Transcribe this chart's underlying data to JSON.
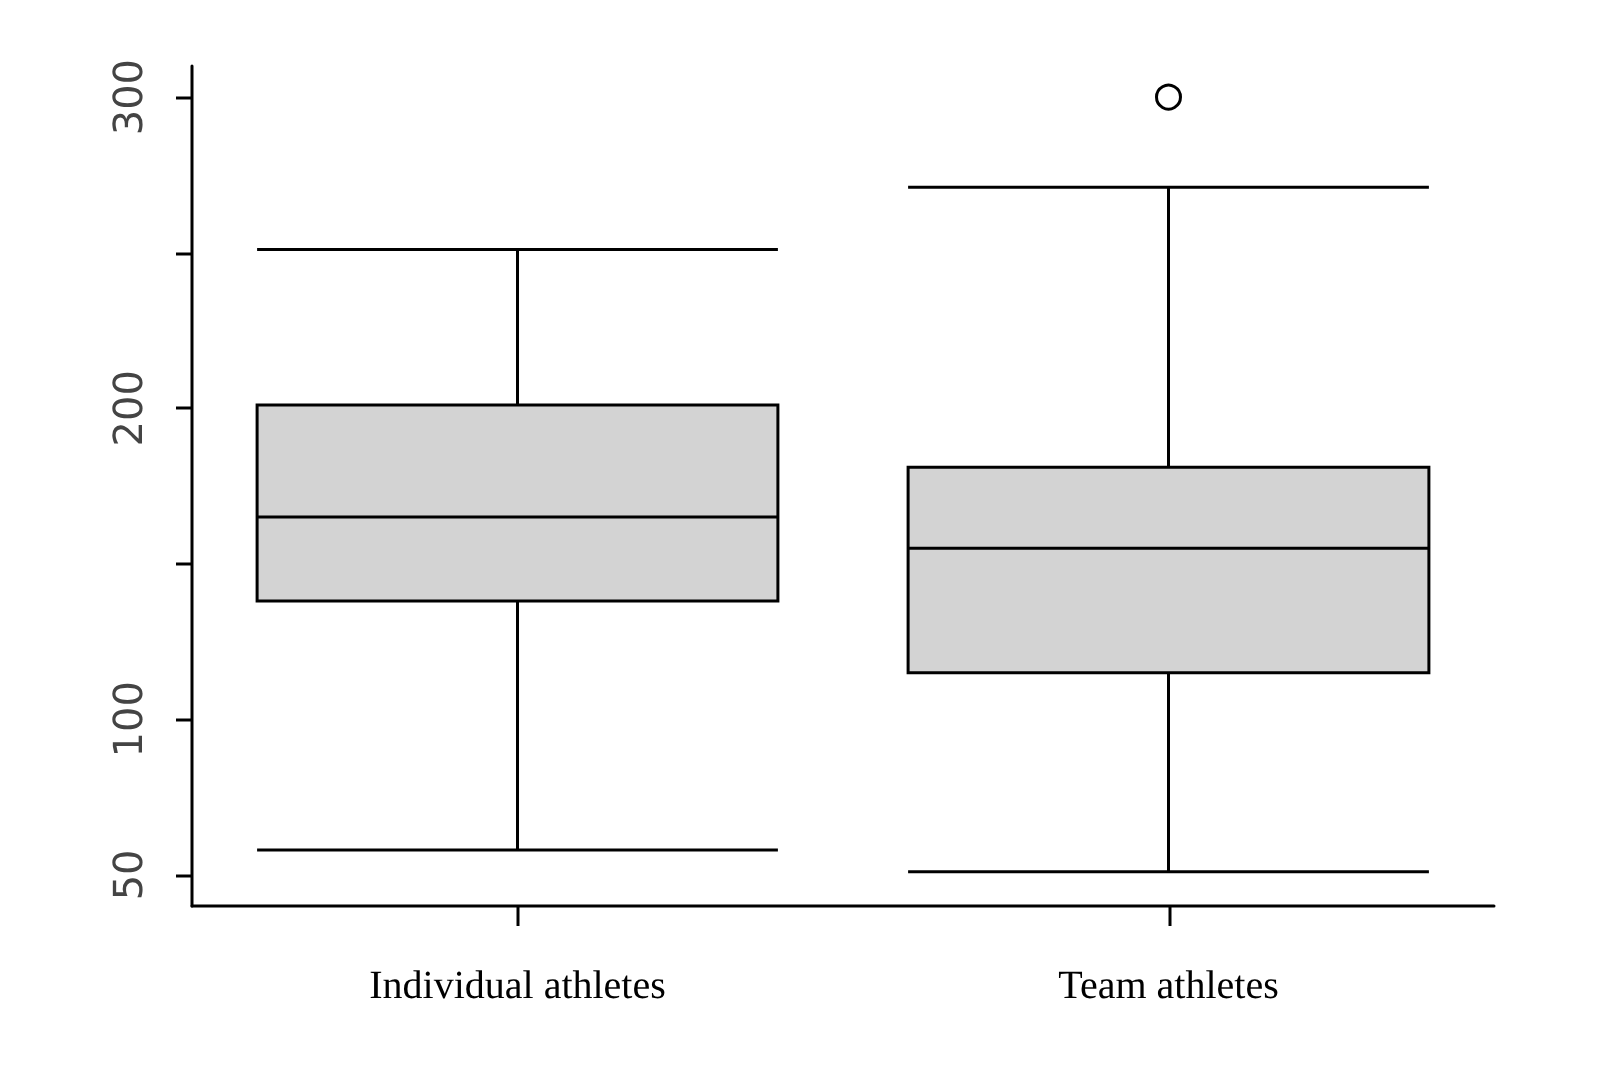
{
  "chart_data": {
    "type": "box",
    "categories": [
      "Individual athletes",
      "Team athletes"
    ],
    "color": "#d3d3d3",
    "boxes": [
      {
        "low": 58,
        "q1": 138,
        "median": 165,
        "q3": 201,
        "high": 251
      },
      {
        "low": 51,
        "q1": 115,
        "median": 155,
        "q3": 181,
        "high": 271,
        "outliers": [
          300
        ]
      }
    ],
    "ylim": [
      40,
      310
    ],
    "yticks": [
      50,
      100,
      {
        "value": 150,
        "label": null
      },
      200,
      {
        "value": 250,
        "label": null
      },
      300
    ],
    "grid": false
  }
}
